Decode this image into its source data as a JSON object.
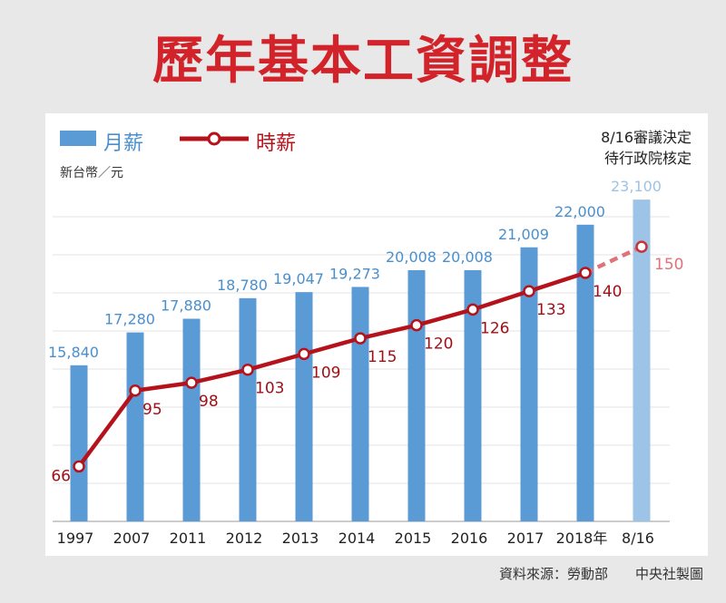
{
  "title": "歷年基本工資調整",
  "legend": {
    "bar_label": "月薪",
    "line_label": "時薪"
  },
  "unit": "新台幣／元",
  "note": {
    "line1": "8/16審議決定",
    "line2": "待行政院核定"
  },
  "source": "資料來源：勞動部",
  "credit": "中央社製圖",
  "colors": {
    "title": "#d3232a",
    "bar": "#5b9bd5",
    "bar_pending": "#9dc3e6",
    "line": "#b5121b",
    "line_pending": "#e0737a"
  },
  "chart_data": {
    "type": "bar",
    "title": "歷年基本工資調整",
    "categories": [
      "1997",
      "2007",
      "2011",
      "2012",
      "2013",
      "2014",
      "2015",
      "2016",
      "2017",
      "2018年",
      "8/16"
    ],
    "series": [
      {
        "name": "月薪",
        "type": "bar",
        "values": [
          15840,
          17280,
          17880,
          18780,
          19047,
          19273,
          20008,
          20008,
          21009,
          22000,
          23100
        ],
        "labels": [
          "15,840",
          "17,280",
          "17,880",
          "18,780",
          "19,047",
          "19,273",
          "20,008",
          "20,008",
          "21,009",
          "22,000",
          "23,100"
        ]
      },
      {
        "name": "時薪",
        "type": "line",
        "values": [
          66,
          95,
          98,
          103,
          109,
          115,
          120,
          126,
          133,
          140,
          150
        ],
        "labels": [
          "66",
          "95",
          "98",
          "103",
          "109",
          "115",
          "120",
          "126",
          "133",
          "140",
          "150"
        ]
      }
    ],
    "pending_last": true,
    "bar_ylim": [
      9000,
      23900
    ],
    "line_ylim": [
      45,
      175
    ],
    "grid": true,
    "legend": "top-left"
  }
}
